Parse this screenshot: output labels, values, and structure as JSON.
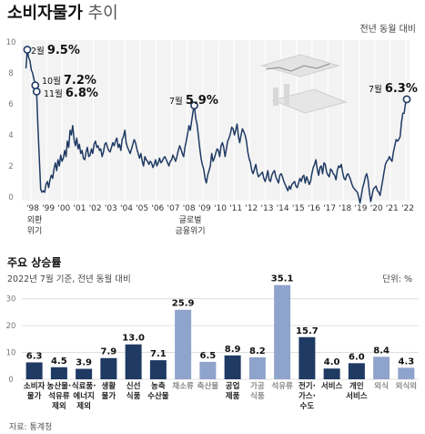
{
  "title_bold": "소비자물가",
  "title_light": "추이",
  "top_unit": "전년 동월 대비",
  "chart_data": [
    {
      "type": "line",
      "title": "소비자물가 추이",
      "y_ticks": [
        "0",
        "2",
        "4",
        "6",
        "8",
        "10"
      ],
      "ylim": [
        0,
        10
      ],
      "x_ticks": [
        "'98",
        "'99",
        "'00",
        "'01",
        "'02",
        "'03",
        "'04",
        "'05",
        "'06",
        "'07",
        "'08",
        "'09",
        "'10",
        "'11",
        "'12",
        "'13",
        "'14",
        "'15",
        "'16",
        "'17",
        "'18",
        "'19",
        "'20",
        "'21",
        "'22"
      ],
      "grid": true,
      "series": [
        {
          "values": [
            8.3,
            9.5,
            9.0,
            8.8,
            8.2,
            8.0,
            7.6,
            7.2,
            6.8,
            4.5,
            2.5,
            0.5,
            0.3,
            0.4,
            0.3,
            0.8,
            1.0,
            0.6,
            1.1,
            1.4,
            1.2,
            1.8,
            2.2,
            1.7,
            2.4,
            2.0,
            2.7,
            2.3,
            2.5,
            3.0,
            2.6,
            3.6,
            3.2,
            4.3,
            4.0,
            4.6,
            3.7,
            3.3,
            3.8,
            3.1,
            3.4,
            2.8,
            3.0,
            2.5,
            2.4,
            2.9,
            3.2,
            2.6,
            2.7,
            3.1,
            2.8,
            3.4,
            3.6,
            3.2,
            3.3,
            3.0,
            3.1,
            2.6,
            2.9,
            3.4,
            3.5,
            3.2,
            3.0,
            2.9,
            3.2,
            3.5,
            3.3,
            3.6,
            3.8,
            3.2,
            3.4,
            3.0,
            3.7,
            3.9,
            4.3,
            3.5,
            3.2,
            3.0,
            2.8,
            3.1,
            3.4,
            3.7,
            3.5,
            3.1,
            2.8,
            2.5,
            2.8,
            2.3,
            2.0,
            2.6,
            2.4,
            2.3,
            2.1,
            2.3,
            2.2,
            1.9,
            2.1,
            2.4,
            2.0,
            2.2,
            2.5,
            2.2,
            2.3,
            2.5,
            2.6,
            2.4,
            2.2,
            2.0,
            2.3,
            2.4,
            2.7,
            2.5,
            2.3,
            2.6,
            3.0,
            3.3,
            3.1,
            2.8,
            2.6,
            3.2,
            3.6,
            4.1,
            4.6,
            4.3,
            4.9,
            5.5,
            5.9,
            5.1,
            4.7,
            4.0,
            3.2,
            2.5,
            2.1,
            1.8,
            1.2,
            0.9,
            1.4,
            1.7,
            2.0,
            2.8,
            2.3,
            2.5,
            2.8,
            3.1,
            3.0,
            2.6,
            3.3,
            3.5,
            3.2,
            2.6,
            3.1,
            3.6,
            3.8,
            4.1,
            4.5,
            4.4,
            4.0,
            4.3,
            4.7,
            3.9,
            3.5,
            4.0,
            4.4,
            4.2,
            4.0,
            3.6,
            2.9,
            2.5,
            2.2,
            1.7,
            1.5,
            1.8,
            2.1,
            1.6,
            1.3,
            1.4,
            1.5,
            1.6,
            1.2,
            1.0,
            1.3,
            1.7,
            1.1,
            1.0,
            1.4,
            1.6,
            1.7,
            1.3,
            1.1,
            0.9,
            1.4,
            1.5,
            1.3,
            1.0,
            0.8,
            0.6,
            0.4,
            0.7,
            0.5,
            0.8,
            0.9,
            1.0,
            0.7,
            0.6,
            0.9,
            1.2,
            1.0,
            1.3,
            1.4,
            0.9,
            1.3,
            1.1,
            0.8,
            1.0,
            1.5,
            1.9,
            2.1,
            2.4,
            1.8,
            1.4,
            1.9,
            2.0,
            1.5,
            2.2,
            2.1,
            1.6,
            1.4,
            1.3,
            1.8,
            1.7,
            1.5,
            1.4,
            1.1,
            1.7,
            2.0,
            1.9,
            2.1,
            1.6,
            1.2,
            1.1,
            1.4,
            1.5,
            1.3,
            1.1,
            0.8,
            0.6,
            0.5,
            0.4,
            0.3,
            0.0,
            -0.4,
            0.1,
            0.6,
            0.9,
            1.3,
            1.5,
            1.1,
            0.3,
            -0.3,
            0.1,
            0.5,
            0.6,
            0.7,
            0.4,
            0.3,
            0.1,
            0.6,
            1.1,
            1.6,
            2.1,
            2.3,
            2.4,
            2.6,
            2.4,
            2.3,
            2.9,
            3.3,
            3.7,
            3.6,
            3.7,
            3.9,
            4.8,
            5.4,
            5.4,
            6.0,
            6.3
          ]
        }
      ],
      "annotations": [
        {
          "label": "2월",
          "value": "9.5%"
        },
        {
          "label": "10월",
          "value": "7.2%"
        },
        {
          "label": "11월",
          "value": "6.8%"
        },
        {
          "label": "7월",
          "value": "5.9%"
        },
        {
          "label": "7월",
          "value": "6.3%"
        }
      ],
      "event_labels": [
        "외환",
        "위기",
        "글로벌",
        "금융위기"
      ]
    },
    {
      "type": "bar",
      "title": "주요 상승률",
      "subtitle": "2022년 7월 기준, 전년 동월 대비",
      "unit": "단위: %",
      "y_ticks": [
        "0",
        "10",
        "20",
        "30"
      ],
      "ylim": [
        0,
        36
      ],
      "categories": [
        [
          "소비자",
          "물가"
        ],
        [
          "농산물·",
          "석유류",
          "제외"
        ],
        [
          "식료품·",
          "에너지",
          "제외"
        ],
        [
          "생활",
          "물가"
        ],
        [
          "신선",
          "식품"
        ],
        [
          "농축",
          "수산물"
        ],
        [
          "채소류"
        ],
        [
          "축산물"
        ],
        [
          "공업",
          "제품"
        ],
        [
          "가공",
          "식품"
        ],
        [
          "석유류"
        ],
        [
          "전기·",
          "가스·",
          "수도"
        ],
        [
          "서비스"
        ],
        [
          "개인",
          "서비스"
        ],
        [
          "외식"
        ],
        [
          "외식외"
        ]
      ],
      "values": [
        6.3,
        4.5,
        3.9,
        7.9,
        13.0,
        7.1,
        25.9,
        6.5,
        8.9,
        8.2,
        35.1,
        15.7,
        4.0,
        6.0,
        8.4,
        4.3
      ],
      "value_labels": [
        "6.3",
        "4.5",
        "3.9",
        "7.9",
        "13.0",
        "7.1",
        "25.9",
        "6.5",
        "8.9",
        "8.2",
        "35.1",
        "15.7",
        "4.0",
        "6.0",
        "8.4",
        "4.3"
      ],
      "colors": [
        "#1f3a63",
        "#1f3a63",
        "#1f3a63",
        "#1f3a63",
        "#1f3a63",
        "#1f3a63",
        "#8fa4cc",
        "#8fa4cc",
        "#1f3a63",
        "#8fa4cc",
        "#8fa4cc",
        "#1f3a63",
        "#1f3a63",
        "#1f3a63",
        "#8fa4cc",
        "#8fa4cc"
      ],
      "label_colors": [
        "#222222",
        "#222222",
        "#222222",
        "#222222",
        "#222222",
        "#222222",
        "#8a8a8a",
        "#8a8a8a",
        "#222222",
        "#8a8a8a",
        "#8a8a8a",
        "#222222",
        "#222222",
        "#222222",
        "#8a8a8a",
        "#8a8a8a"
      ]
    }
  ],
  "bottom_title": "주요 상승률",
  "bottom_subtitle": "2022년 7월 기준, 전년 동월 대비",
  "bottom_unit": "단위: %",
  "source": "자료: 통계청"
}
